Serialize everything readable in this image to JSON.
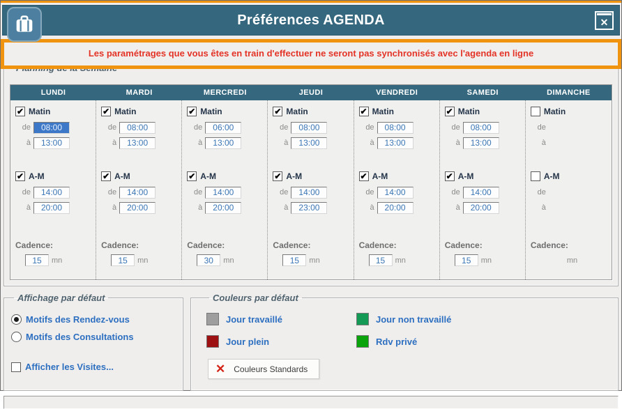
{
  "window": {
    "title": "Préférences AGENDA"
  },
  "icons": {
    "check": "✔",
    "close": "✕",
    "red_x": "✕"
  },
  "warning": {
    "text": "Les paramétrages que vous êtes en train d'effectuer ne seront pas synchronisés avec l'agenda en ligne"
  },
  "colors": {
    "titlebar_teal": "#35687f",
    "annotation_orange": "#f0940f",
    "warning_red": "#e43327",
    "value_blue": "#3b76b5",
    "label_blue": "#2d6fc0",
    "selection_blue": "#3c77c8"
  },
  "planning": {
    "legend": "Planning de la Semaine",
    "labels": {
      "matin": "Matin",
      "am": "A-M",
      "de": "de",
      "a": "à",
      "cadence": "Cadence:",
      "mn": "mn"
    },
    "days": [
      {
        "name": "LUNDI",
        "matin_checked": true,
        "matin_de": "08:00",
        "matin_a": "13:00",
        "am_checked": true,
        "am_de": "14:00",
        "am_a": "20:00",
        "cadence": "15",
        "de_selected": true
      },
      {
        "name": "MARDI",
        "matin_checked": true,
        "matin_de": "08:00",
        "matin_a": "13:00",
        "am_checked": true,
        "am_de": "14:00",
        "am_a": "20:00",
        "cadence": "15"
      },
      {
        "name": "MERCREDI",
        "matin_checked": true,
        "matin_de": "06:00",
        "matin_a": "13:00",
        "am_checked": true,
        "am_de": "14:00",
        "am_a": "20:00",
        "cadence": "30"
      },
      {
        "name": "JEUDI",
        "matin_checked": true,
        "matin_de": "08:00",
        "matin_a": "13:00",
        "am_checked": true,
        "am_de": "14:00",
        "am_a": "23:00",
        "cadence": "15"
      },
      {
        "name": "VENDREDI",
        "matin_checked": true,
        "matin_de": "08:00",
        "matin_a": "13:00",
        "am_checked": true,
        "am_de": "14:00",
        "am_a": "20:00",
        "cadence": "15"
      },
      {
        "name": "SAMEDI",
        "matin_checked": true,
        "matin_de": "08:00",
        "matin_a": "13:00",
        "am_checked": true,
        "am_de": "14:00",
        "am_a": "20:00",
        "cadence": "15"
      },
      {
        "name": "DIMANCHE",
        "matin_checked": false,
        "matin_de": null,
        "matin_a": null,
        "am_checked": false,
        "am_de": null,
        "am_a": null,
        "cadence": null
      }
    ]
  },
  "affichage": {
    "legend": "Affichage par défaut",
    "radios": [
      {
        "label": "Motifs des Rendez-vous",
        "selected": true
      },
      {
        "label": "Motifs des Consultations",
        "selected": false
      }
    ],
    "checkbox": {
      "label": "Afficher les Visites...",
      "checked": false
    }
  },
  "couleurs": {
    "legend": "Couleurs par défaut",
    "items": [
      {
        "label": "Jour travaillé",
        "color": "#9e9e9e"
      },
      {
        "label": "Jour non travaillé",
        "color": "#159a56"
      },
      {
        "label": "Jour plein",
        "color": "#9e1113"
      },
      {
        "label": "Rdv privé",
        "color": "#0ba30b"
      }
    ],
    "button_label": "Couleurs Standards"
  }
}
